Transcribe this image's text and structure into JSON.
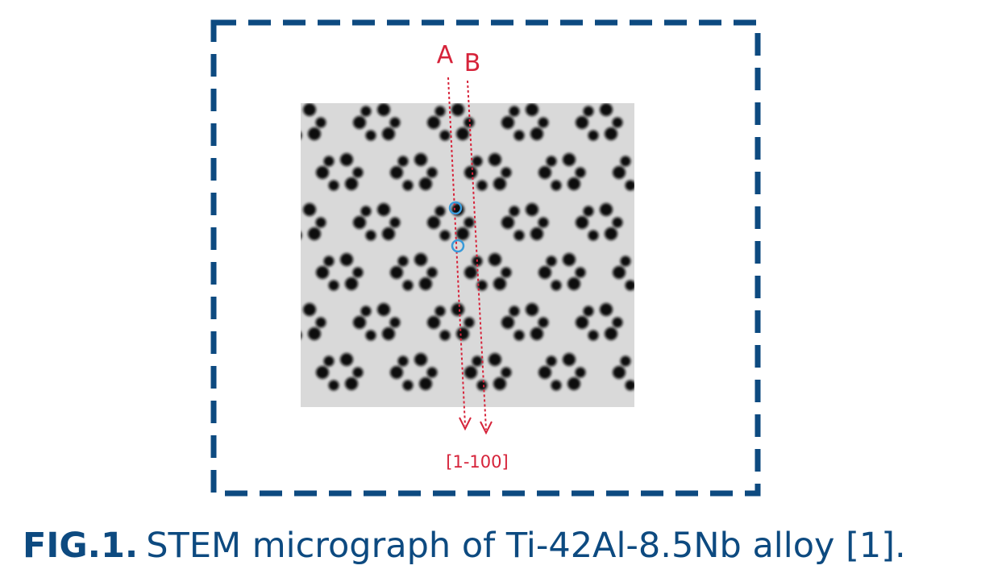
{
  "figure": {
    "labels": {
      "a": "A",
      "b": "B",
      "direction": "[1-100]"
    },
    "caption": {
      "label": "FIG.1.",
      "text": "STEM micrograph of Ti-42Al-8.5Nb alloy [1]."
    }
  }
}
